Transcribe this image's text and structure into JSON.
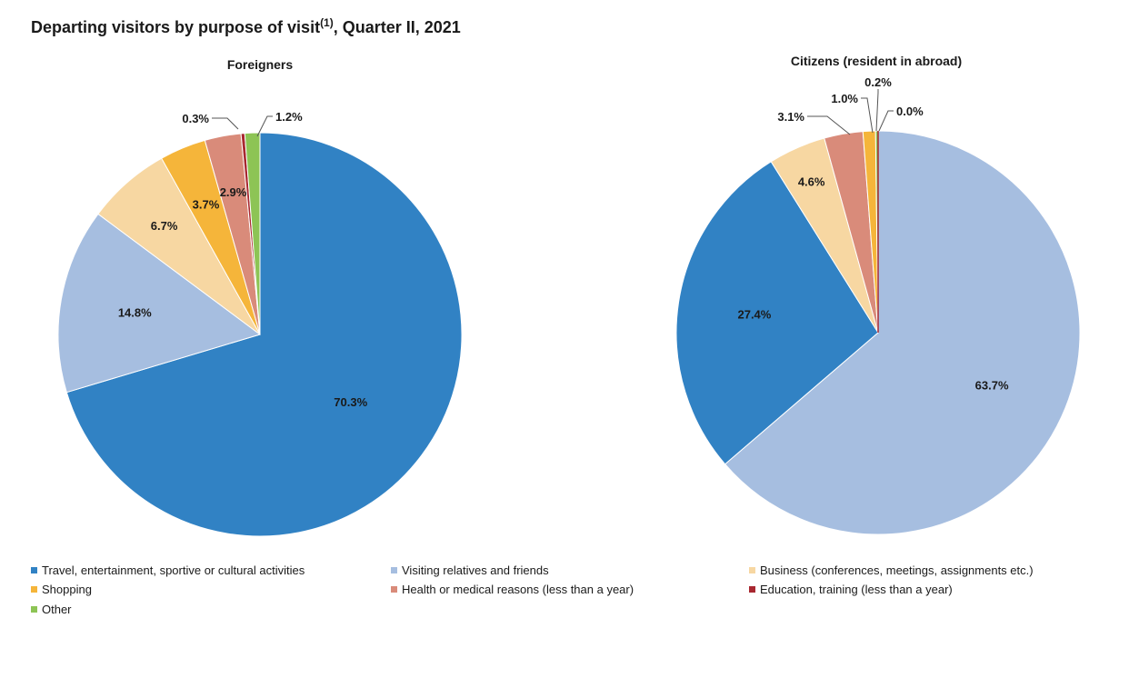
{
  "title": {
    "text": "Departing visitors by purpose of visit",
    "sup": "(1)",
    "rest": ", Quarter II, 2021"
  },
  "categories": [
    "Travel, entertainment, sportive or cultural activities",
    "Visiting relatives and friends",
    "Business (conferences, meetings, assignments etc.)",
    "Shopping",
    "Health or medical reasons (less than a year)",
    "Education, training (less than a year)",
    "Other"
  ],
  "colors": [
    "#3182c4",
    "#a6bee0",
    "#f7d7a2",
    "#f5b53a",
    "#d98b7a",
    "#a82830",
    "#8dc455"
  ],
  "chart_data": [
    {
      "type": "pie",
      "title": "Foreigners",
      "categories": [
        "Travel, entertainment, sportive or cultural activities",
        "Visiting relatives and friends",
        "Business (conferences, meetings, assignments etc.)",
        "Shopping",
        "Health or medical reasons (less than a year)",
        "Education, training (less than a year)",
        "Other"
      ],
      "values": [
        70.3,
        14.8,
        6.7,
        3.7,
        2.9,
        0.3,
        1.2
      ],
      "labels": [
        "70.3%",
        "14.8%",
        "6.7%",
        "3.7%",
        "2.9%",
        "0.3%",
        "1.2%"
      ]
    },
    {
      "type": "pie",
      "title": "Citizens (resident in abroad)",
      "categories": [
        "Visiting relatives and friends",
        "Travel, entertainment, sportive or cultural activities",
        "Business (conferences, meetings, assignments etc.)",
        "Health or medical reasons (less than a year)",
        "Shopping",
        "Other",
        "Education, training (less than a year)"
      ],
      "values": [
        63.7,
        27.4,
        4.6,
        3.1,
        1.0,
        0.2,
        0.0
      ],
      "labels": [
        "63.7%",
        "27.4%",
        "4.6%",
        "3.1%",
        "1.0%",
        "0.2%",
        "0.0%"
      ]
    }
  ],
  "legend": {
    "placement": "bottom"
  }
}
